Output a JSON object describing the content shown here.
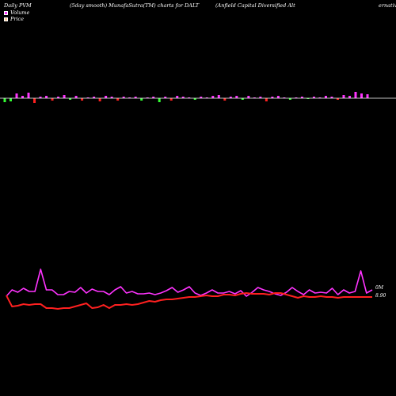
{
  "header": {
    "left": "Daily PVM",
    "middle": "(5day smooth) MunafaSutra(TM) charts for DALT",
    "right": "(Anfield Capital Diversified Alt",
    "far_right": "ernativ"
  },
  "legend": [
    {
      "label": "Volume",
      "color": "#ff33ff"
    },
    {
      "label": "Price",
      "color": "#ffcc99"
    }
  ],
  "chart_data": {
    "type": "line",
    "volume_bars": {
      "values": [
        -5,
        -4,
        6,
        3,
        7,
        -6,
        2,
        3,
        -3,
        2,
        4,
        -2,
        3,
        -3,
        1,
        2,
        -4,
        3,
        2,
        -3,
        2,
        1,
        2,
        -3,
        1,
        2,
        -5,
        2,
        -3,
        3,
        2,
        1,
        -2,
        2,
        1,
        3,
        4,
        -3,
        2,
        3,
        -2,
        3,
        1,
        2,
        -4,
        2,
        3,
        1,
        -2,
        1,
        2,
        -1,
        2,
        1,
        3,
        2,
        -2,
        4,
        3,
        8,
        6,
        5
      ],
      "colors": [
        "g",
        "g",
        "m",
        "m",
        "m",
        "r",
        "m",
        "m",
        "r",
        "m",
        "m",
        "g",
        "m",
        "r",
        "m",
        "m",
        "r",
        "m",
        "m",
        "r",
        "m",
        "m",
        "m",
        "g",
        "m",
        "m",
        "g",
        "m",
        "r",
        "m",
        "m",
        "m",
        "g",
        "m",
        "m",
        "m",
        "m",
        "r",
        "m",
        "m",
        "g",
        "m",
        "m",
        "m",
        "r",
        "m",
        "m",
        "m",
        "g",
        "m",
        "m",
        "g",
        "m",
        "m",
        "m",
        "m",
        "r",
        "m",
        "m",
        "m",
        "m",
        "m"
      ]
    },
    "series": [
      {
        "color": "#ff33ff",
        "values": [
          374,
          366,
          369,
          364,
          368,
          368,
          340,
          366,
          366,
          372,
          372,
          368,
          369,
          363,
          370,
          365,
          368,
          368,
          372,
          366,
          362,
          370,
          368,
          371,
          371,
          370,
          372,
          370,
          367,
          363,
          369,
          366,
          362,
          370,
          373,
          370,
          366,
          370,
          370,
          368,
          371,
          367,
          374,
          369,
          363,
          366,
          368,
          371,
          373,
          369,
          363,
          368,
          372,
          366,
          370,
          369,
          370,
          364,
          372,
          366,
          370,
          368,
          342,
          370,
          366
        ]
      },
      {
        "color": "#ff2020",
        "values": [
          373,
          387,
          386,
          384,
          385,
          384,
          384,
          389,
          389,
          390,
          389,
          389,
          387,
          385,
          383,
          389,
          388,
          385,
          389,
          385,
          385,
          384,
          385,
          384,
          382,
          380,
          381,
          379,
          378,
          378,
          377,
          376,
          375,
          375,
          374,
          373,
          374,
          374,
          372,
          372,
          373,
          371,
          370,
          371,
          371,
          371,
          372,
          370,
          370,
          372,
          374,
          376,
          374,
          375,
          375,
          374,
          375,
          375,
          376,
          375,
          375,
          375,
          375,
          375,
          375
        ]
      }
    ],
    "labels": {
      "volume_last": "0M",
      "price_last": "8.90"
    }
  }
}
